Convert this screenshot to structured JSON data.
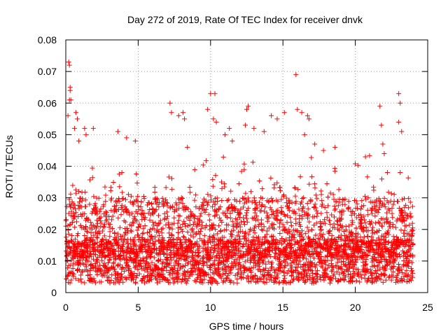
{
  "chart_data": {
    "type": "scatter",
    "title": "Day 272 of 2019, Rate Of TEC Index for receiver dnvk",
    "xlabel": "GPS time / hours",
    "ylabel": "ROTI / TECUs",
    "xlim": [
      0,
      25
    ],
    "ylim": [
      0,
      0.08
    ],
    "x_ticks": [
      0,
      5,
      10,
      15,
      20,
      25
    ],
    "y_ticks": [
      0,
      0.01,
      0.02,
      0.03,
      0.04,
      0.05,
      0.06,
      0.07,
      0.08
    ],
    "x_tick_labels": [
      "0",
      "5",
      "10",
      "15",
      "20",
      "25"
    ],
    "y_tick_labels": [
      "0",
      "0.01",
      "0.02",
      "0.03",
      "0.04",
      "0.05",
      "0.06",
      "0.07",
      "0.08"
    ],
    "grid": true,
    "marker": "+",
    "color": "#ff0000",
    "series": [
      {
        "name": "ROTI",
        "points": [
          [
            0.2,
            0.073
          ],
          [
            0.25,
            0.072
          ],
          [
            0.3,
            0.065
          ],
          [
            0.3,
            0.064
          ],
          [
            0.25,
            0.061
          ],
          [
            0.35,
            0.061
          ],
          [
            0.15,
            0.056
          ],
          [
            0.7,
            0.057
          ],
          [
            0.8,
            0.055
          ],
          [
            0.6,
            0.052
          ],
          [
            0.9,
            0.048
          ],
          [
            1.3,
            0.052
          ],
          [
            1.4,
            0.05
          ],
          [
            1.9,
            0.052
          ],
          [
            3.6,
            0.051
          ],
          [
            4.2,
            0.049
          ],
          [
            4.8,
            0.048
          ],
          [
            7.2,
            0.06
          ],
          [
            7.3,
            0.057
          ],
          [
            7.8,
            0.056
          ],
          [
            8.1,
            0.057
          ],
          [
            8.2,
            0.055
          ],
          [
            8.4,
            0.046
          ],
          [
            9.8,
            0.058
          ],
          [
            10.0,
            0.063
          ],
          [
            10.3,
            0.063
          ],
          [
            10.2,
            0.055
          ],
          [
            10.4,
            0.054
          ],
          [
            11.0,
            0.05
          ],
          [
            11.3,
            0.052
          ],
          [
            11.5,
            0.048
          ],
          [
            12.5,
            0.058
          ],
          [
            12.6,
            0.059
          ],
          [
            12.4,
            0.053
          ],
          [
            13.0,
            0.052
          ],
          [
            13.7,
            0.051
          ],
          [
            14.2,
            0.056
          ],
          [
            14.6,
            0.055
          ],
          [
            15.1,
            0.057
          ],
          [
            15.9,
            0.069
          ],
          [
            16.0,
            0.058
          ],
          [
            16.3,
            0.057
          ],
          [
            16.5,
            0.05
          ],
          [
            16.7,
            0.056
          ],
          [
            16.8,
            0.055
          ],
          [
            17.2,
            0.047
          ],
          [
            17.8,
            0.045
          ],
          [
            18.6,
            0.046
          ],
          [
            20.7,
            0.043
          ],
          [
            21.7,
            0.059
          ],
          [
            21.8,
            0.053
          ],
          [
            21.9,
            0.047
          ],
          [
            22.0,
            0.044
          ],
          [
            23.0,
            0.063
          ],
          [
            23.1,
            0.06
          ],
          [
            23.0,
            0.054
          ],
          [
            23.2,
            0.051
          ],
          [
            23.1,
            0.038
          ]
        ]
      }
    ],
    "dense_band": {
      "x_range": [
        0,
        24
      ],
      "baseline_y": 0.011,
      "typical_upper_y": 0.03,
      "peak_upper_y": 0.045,
      "min_y": 0.003
    }
  }
}
